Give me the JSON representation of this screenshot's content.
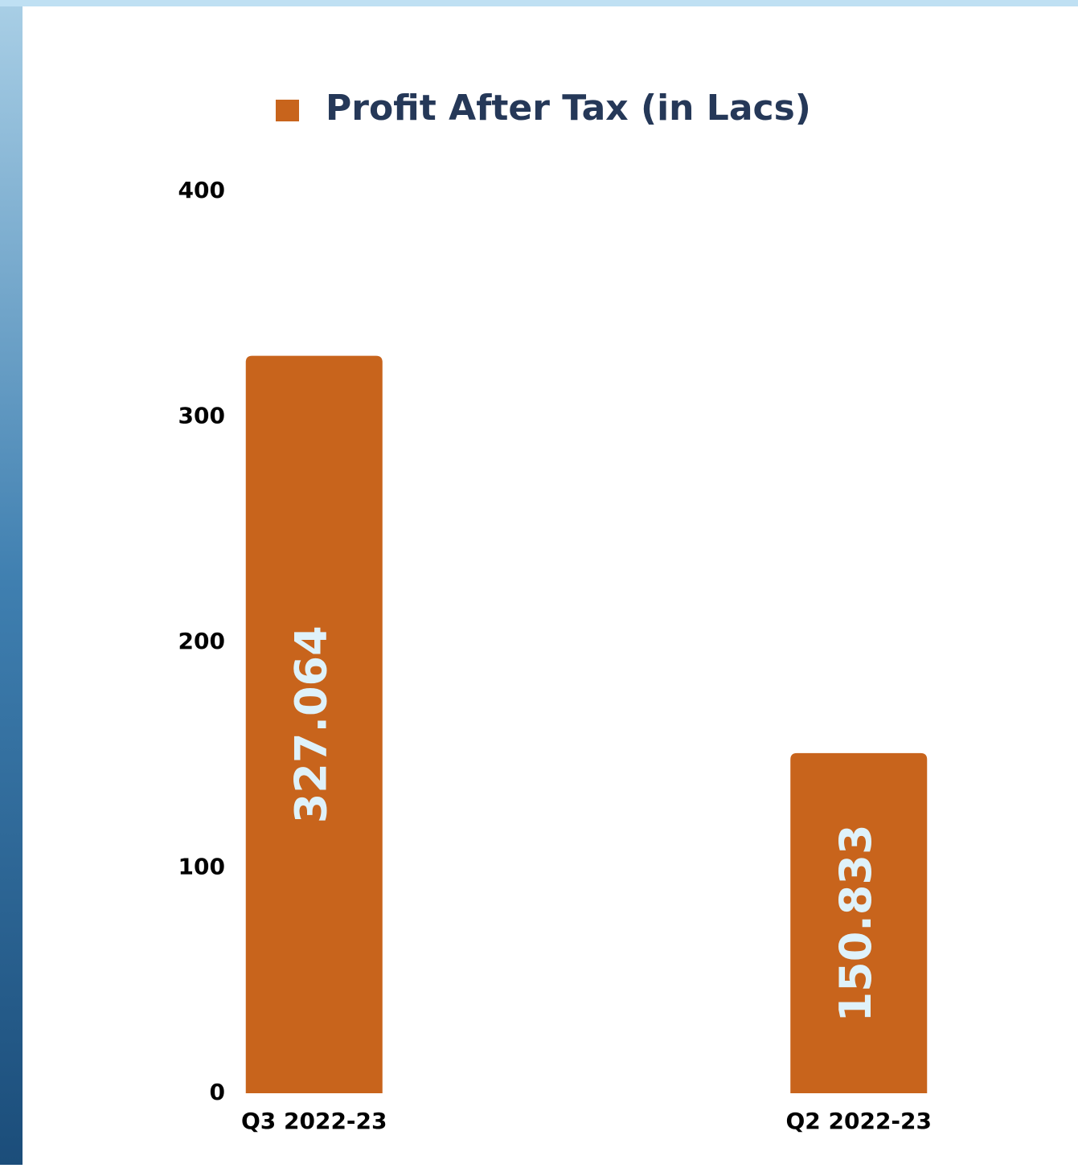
{
  "chart_data": {
    "type": "bar",
    "categories": [
      "Q3 2022-23",
      "Q2 2022-23"
    ],
    "series": [
      {
        "name": "Profit After Tax (in Lacs)",
        "color": "#c8641c",
        "values": [
          327.064,
          150.833
        ]
      }
    ],
    "ylim": [
      0,
      400
    ],
    "yticks": [
      0,
      100,
      200,
      300,
      400
    ],
    "grid": false,
    "legend": "top"
  }
}
